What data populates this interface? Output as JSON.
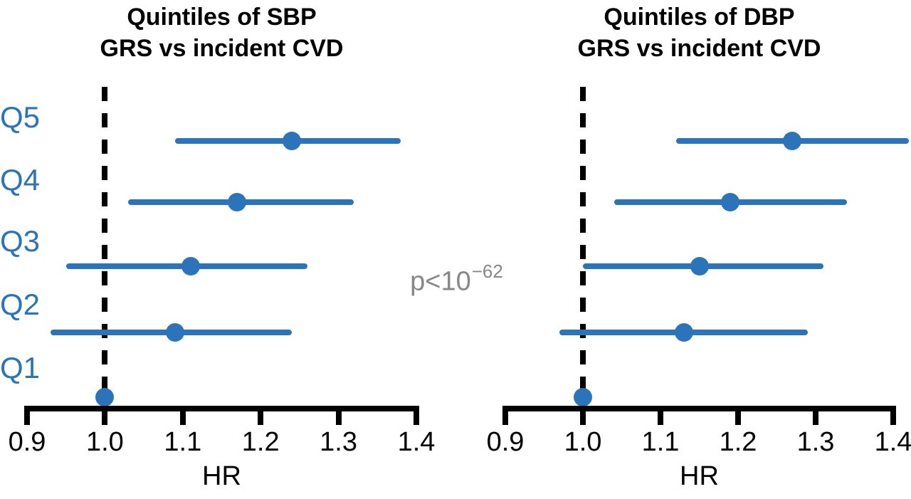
{
  "colors": {
    "accent_blue": "#2b74ba",
    "annotation_gray": "#878787",
    "axis_black": "#000000"
  },
  "annotation": {
    "p_value_base": "p<10",
    "p_value_exponent": "−62"
  },
  "chart_data": [
    {
      "type": "scatter",
      "subtype": "forest-plot",
      "title_line1": "Quintiles of SBP",
      "title_line2": "GRS vs incident CVD",
      "xlabel": "HR",
      "xlim": [
        0.9,
        1.4
      ],
      "xticks": [
        0.9,
        1.0,
        1.1,
        1.2,
        1.3,
        1.4
      ],
      "xtick_labels": [
        "0.9",
        "1.0",
        "1.1",
        "1.2",
        "1.3",
        "1.4"
      ],
      "reference_line": 1.0,
      "grid": false,
      "categories": [
        "Q5",
        "Q4",
        "Q3",
        "Q2",
        "Q1"
      ],
      "points": [
        {
          "label": "Q5",
          "hr": 1.24,
          "ci_low": 1.09,
          "ci_high": 1.38
        },
        {
          "label": "Q4",
          "hr": 1.17,
          "ci_low": 1.03,
          "ci_high": 1.32
        },
        {
          "label": "Q3",
          "hr": 1.11,
          "ci_low": 0.95,
          "ci_high": 1.26
        },
        {
          "label": "Q2",
          "hr": 1.09,
          "ci_low": 0.93,
          "ci_high": 1.24
        },
        {
          "label": "Q1",
          "hr": 1.0,
          "ci_low": null,
          "ci_high": null
        }
      ]
    },
    {
      "type": "scatter",
      "subtype": "forest-plot",
      "title_line1": "Quintiles of DBP",
      "title_line2": "GRS vs incident CVD",
      "xlabel": "HR",
      "xlim": [
        0.9,
        1.4
      ],
      "xticks": [
        0.9,
        1.0,
        1.1,
        1.2,
        1.3,
        1.4
      ],
      "xtick_labels": [
        "0.9",
        "1.0",
        "1.1",
        "1.2",
        "1.3",
        "1.4"
      ],
      "reference_line": 1.0,
      "grid": false,
      "categories": [
        "Q5",
        "Q4",
        "Q3",
        "Q2",
        "Q1"
      ],
      "points": [
        {
          "label": "Q5",
          "hr": 1.27,
          "ci_low": 1.12,
          "ci_high": 1.42
        },
        {
          "label": "Q4",
          "hr": 1.19,
          "ci_low": 1.04,
          "ci_high": 1.34
        },
        {
          "label": "Q3",
          "hr": 1.15,
          "ci_low": 1.0,
          "ci_high": 1.31
        },
        {
          "label": "Q2",
          "hr": 1.13,
          "ci_low": 0.97,
          "ci_high": 1.29
        },
        {
          "label": "Q1",
          "hr": 1.0,
          "ci_low": null,
          "ci_high": null
        }
      ]
    }
  ]
}
